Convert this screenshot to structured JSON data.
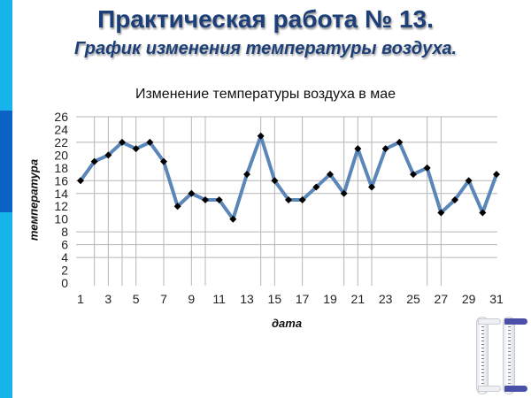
{
  "slide": {
    "title": "Практическая работа № 13.",
    "subtitle": "График изменения температуры воздуха.",
    "colors": {
      "side_bar": "#16b4ea",
      "side_bar_accent": "#0a62c4",
      "title": "#1d3f78"
    }
  },
  "chart_data": {
    "type": "line",
    "title": "Изменение температуры воздуха в мае",
    "xlabel": "дата",
    "ylabel": "температура",
    "x": [
      1,
      2,
      3,
      4,
      5,
      6,
      7,
      8,
      9,
      10,
      11,
      12,
      13,
      14,
      15,
      16,
      17,
      18,
      19,
      20,
      21,
      22,
      23,
      24,
      25,
      26,
      27,
      28,
      29,
      30,
      31
    ],
    "series": [
      {
        "name": "температура",
        "color": "#5b86b8",
        "marker": "diamond",
        "values": [
          16,
          19,
          20,
          22,
          21,
          22,
          19,
          12,
          14,
          13,
          13,
          10,
          17,
          23,
          16,
          13,
          13,
          15,
          17,
          14,
          21,
          15,
          21,
          22,
          17,
          18,
          11,
          13,
          16,
          11,
          17
        ]
      }
    ],
    "x_tick_labels": [
      "1",
      "3",
      "5",
      "7",
      "9",
      "11",
      "13",
      "15",
      "17",
      "19",
      "21",
      "23",
      "25",
      "27",
      "29",
      "31"
    ],
    "y_tick_labels": [
      "0",
      "2",
      "4",
      "6",
      "8",
      "10",
      "12",
      "14",
      "16",
      "18",
      "20",
      "22",
      "24",
      "26"
    ],
    "ylim": [
      0,
      26
    ],
    "xlim": [
      1,
      31
    ],
    "grid": {
      "horizontal_at": [
        26,
        22,
        16,
        14,
        8,
        6,
        4
      ],
      "vertical_at": [
        2,
        3,
        4,
        5,
        7,
        9,
        10,
        14,
        15,
        17,
        20,
        21,
        22,
        26,
        27
      ]
    },
    "legend": "none"
  }
}
